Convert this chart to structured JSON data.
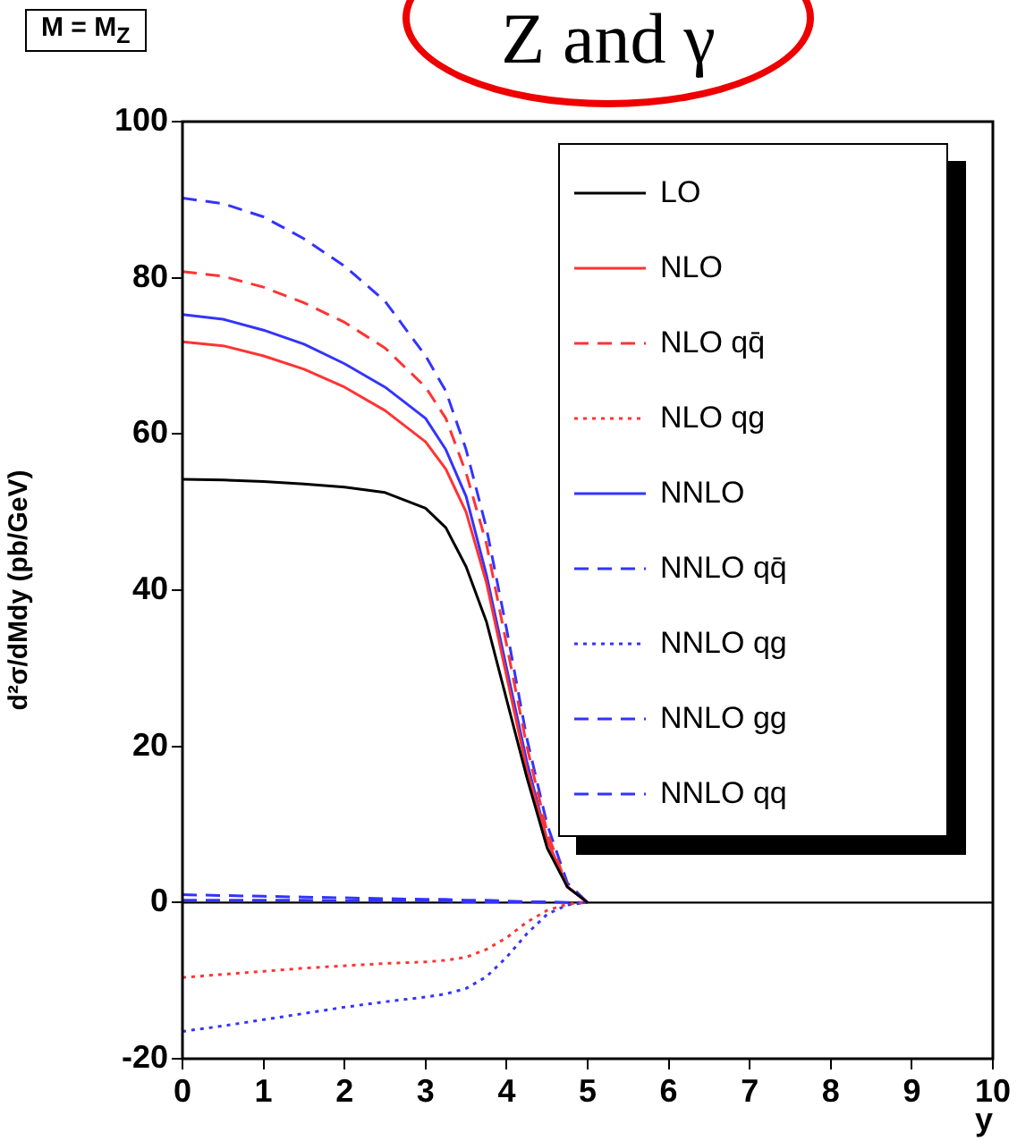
{
  "chart_data": {
    "type": "line",
    "title": "Z and γ",
    "ylabel": "d²σ/dMdy (pb/GeV)",
    "xlabel": "y",
    "annotations": [
      "M = M$_{Z}$"
    ],
    "x": [
      0,
      0.5,
      1,
      1.5,
      2,
      2.5,
      3,
      3.25,
      3.5,
      3.75,
      4,
      4.25,
      4.5,
      4.75,
      5
    ],
    "xlim": [
      0,
      10
    ],
    "xticks": [
      0,
      1,
      2,
      3,
      4,
      5,
      6,
      7,
      8,
      9,
      10
    ],
    "ylim": [
      -20,
      100
    ],
    "yticks": [
      -20,
      0,
      20,
      40,
      60,
      80,
      100
    ],
    "grid": false,
    "legend": "top right",
    "marker": "none",
    "ref_lines": [
      {
        "axis": "y",
        "value": 0,
        "color": "#000000"
      }
    ],
    "series": [
      {
        "name": "LO",
        "color": "#000000",
        "line_style": "solid",
        "values": [
          54.2,
          54.1,
          53.9,
          53.6,
          53.2,
          52.5,
          50.5,
          48,
          43,
          36,
          26,
          16,
          7,
          2,
          0
        ]
      },
      {
        "name": "NLO",
        "color": "#ff3333",
        "line_style": "solid",
        "values": [
          71.8,
          71.3,
          70,
          68.3,
          66,
          63,
          59,
          55.5,
          50,
          41,
          29,
          17,
          8,
          2,
          0
        ]
      },
      {
        "name": "NLO qq̄",
        "color": "#ff3333",
        "line_style": "dashed",
        "values": [
          80.8,
          80.2,
          78.8,
          76.8,
          74.3,
          71,
          66,
          62,
          55,
          46,
          33,
          20,
          9,
          2,
          0
        ]
      },
      {
        "name": "NLO qg",
        "color": "#ff3333",
        "line_style": "dotted",
        "values": [
          -9.6,
          -9.2,
          -8.8,
          -8.4,
          -8.1,
          -7.8,
          -7.6,
          -7.4,
          -7,
          -6,
          -4.5,
          -2.5,
          -1,
          -0.2,
          0
        ]
      },
      {
        "name": "NNLO",
        "color": "#3333ff",
        "line_style": "solid",
        "values": [
          75.3,
          74.7,
          73.3,
          71.5,
          69,
          66,
          62,
          58,
          52,
          42,
          30,
          18,
          8,
          2,
          0
        ]
      },
      {
        "name": "NNLO qq̄",
        "color": "#3333ff",
        "line_style": "dashed",
        "values": [
          90.2,
          89.5,
          87.8,
          85,
          81.5,
          77,
          70,
          65.5,
          58,
          48,
          35,
          21,
          10,
          2.5,
          0
        ]
      },
      {
        "name": "NNLO qg",
        "color": "#3333ff",
        "line_style": "dotted",
        "values": [
          -16.5,
          -15.8,
          -15,
          -14.2,
          -13.4,
          -12.7,
          -12.1,
          -11.7,
          -11,
          -9.5,
          -7,
          -4,
          -1.5,
          -0.3,
          0
        ]
      },
      {
        "name": "NNLO gg",
        "color": "#3333ff",
        "line_style": "dashed",
        "values": [
          1,
          0.9,
          0.8,
          0.7,
          0.6,
          0.5,
          0.4,
          0.4,
          0.3,
          0.3,
          0.2,
          0.1,
          0.1,
          0,
          0
        ]
      },
      {
        "name": "NNLO qq",
        "color": "#3333ff",
        "line_style": "dashed",
        "values": [
          0.3,
          0.3,
          0.3,
          0.3,
          0.2,
          0.2,
          0.2,
          0.2,
          0.1,
          0.1,
          0.1,
          0.1,
          0,
          null,
          null
        ]
      }
    ]
  }
}
